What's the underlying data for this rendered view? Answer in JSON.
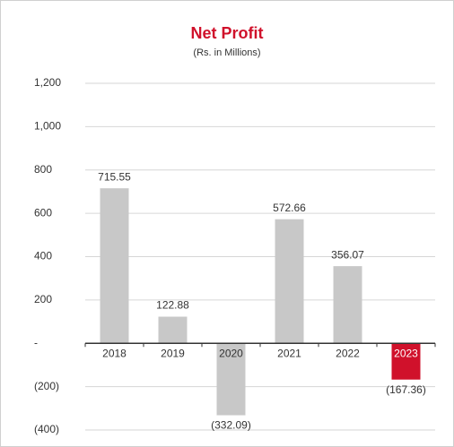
{
  "chart_data": {
    "type": "bar",
    "title": "Net Profit",
    "subtitle": "(Rs. in Millions)",
    "categories": [
      "2018",
      "2019",
      "2020",
      "2021",
      "2022",
      "2023"
    ],
    "values": [
      715.55,
      122.88,
      -332.09,
      572.66,
      356.07,
      -167.36
    ],
    "value_labels": [
      "715.55",
      "122.88",
      "(332.09)",
      "572.66",
      "356.07",
      "(167.36)"
    ],
    "colors": [
      "#c8c8c8",
      "#c8c8c8",
      "#c8c8c8",
      "#c8c8c8",
      "#c8c8c8",
      "#d0112b"
    ],
    "ylim": [
      -400,
      1200
    ],
    "yticks": [
      {
        "value": -400,
        "label": "(400)"
      },
      {
        "value": -200,
        "label": "(200)"
      },
      {
        "value": 0,
        "label": "-"
      },
      {
        "value": 200,
        "label": "200"
      },
      {
        "value": 400,
        "label": "400"
      },
      {
        "value": 600,
        "label": "600"
      },
      {
        "value": 800,
        "label": "800"
      },
      {
        "value": 1000,
        "label": "1,000"
      },
      {
        "value": 1200,
        "label": "1,200"
      }
    ],
    "grid": true
  }
}
